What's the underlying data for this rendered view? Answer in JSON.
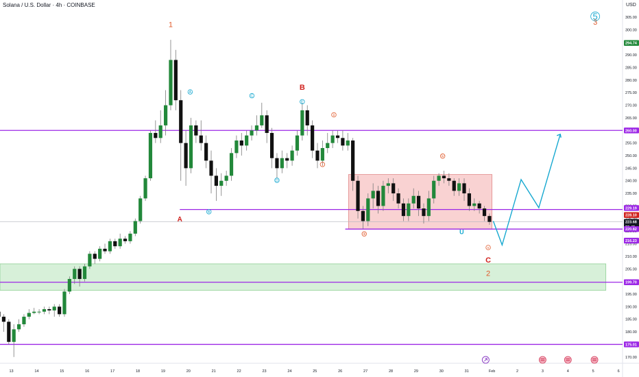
{
  "header": {
    "symbol": "Solana / U.S. Dollar",
    "interval": "4h",
    "exchange": "COINBASE",
    "currency": "USD"
  },
  "colors": {
    "up": "#22883a",
    "down": "#111111",
    "level": "#9c27e6",
    "red": "#d0211d",
    "cyan": "#16a8d0",
    "orange": "#e05a2b",
    "range_fill": "#f5b7b7",
    "support_fill": "#bfe6c2"
  },
  "chart_data": {
    "type": "candlestick",
    "x_ticks": [
      "13",
      "14",
      "15",
      "16",
      "17",
      "18",
      "19",
      "20",
      "21",
      "22",
      "23",
      "24",
      "25",
      "26",
      "27",
      "28",
      "29",
      "30",
      "31",
      "Feb",
      "2",
      "3",
      "4",
      "5",
      "6"
    ],
    "y_ticks": [
      170,
      175,
      180,
      185,
      190,
      195,
      200,
      205,
      210,
      215,
      220,
      225,
      230,
      235,
      240,
      245,
      250,
      255,
      260,
      265,
      270,
      275,
      280,
      285,
      290,
      295,
      300,
      305
    ],
    "ylim": [
      167.5,
      308
    ],
    "price_tags": [
      {
        "label": "294.74",
        "value": 294.74,
        "color": "#22883a"
      },
      {
        "label": "260.00",
        "value": 260.0,
        "color": "#9c27e6"
      },
      {
        "label": "229.19",
        "value": 229.19,
        "color": "#9c27e6"
      },
      {
        "label": "228.10",
        "value": 226.4,
        "color": "#d0211d"
      },
      {
        "label": "223.68",
        "value": 223.68,
        "color": "#131722"
      },
      {
        "label": "30:49",
        "value": 221.7,
        "color": "#131722"
      },
      {
        "label": "220.82",
        "value": 220.82,
        "color": "#9c27e6"
      },
      {
        "label": "216.23",
        "value": 216.23,
        "color": "#9c27e6"
      },
      {
        "label": "199.70",
        "value": 199.7,
        "color": "#9c27e6"
      },
      {
        "label": "175.01",
        "value": 175.01,
        "color": "#9c27e6"
      }
    ],
    "levels": [
      {
        "value": 260.0,
        "from": 12.5,
        "to": 25.4
      },
      {
        "value": 228.6,
        "from": 19.66,
        "to": 25.4
      },
      {
        "value": 220.82,
        "from": 26.2,
        "to": 25.4
      },
      {
        "value": 199.7,
        "from": 12.5,
        "to": 25.4
      },
      {
        "value": 175.01,
        "from": 12.5,
        "to": 25.4
      }
    ],
    "zones": [
      {
        "name": "range",
        "x1": 26.33,
        "x2": 32.0,
        "y1": 220.8,
        "y2": 242.5
      },
      {
        "name": "support",
        "x1": 12.5,
        "x2": 36.5,
        "y1": 196.5,
        "y2": 207.0
      }
    ],
    "candles": [
      [
        12.5,
        188,
        186,
        189.5,
        185
      ],
      [
        12.7,
        186,
        184,
        187,
        180
      ],
      [
        12.9,
        184,
        176,
        185,
        175
      ],
      [
        13.1,
        176,
        181,
        183,
        170
      ],
      [
        13.3,
        181,
        183,
        185,
        180
      ],
      [
        13.5,
        183,
        186,
        187,
        182
      ],
      [
        13.7,
        186,
        187.5,
        189,
        185
      ],
      [
        13.9,
        187.5,
        188,
        189.5,
        187
      ],
      [
        14.1,
        188,
        188,
        189,
        187
      ],
      [
        14.3,
        188,
        189,
        190,
        187
      ],
      [
        14.5,
        189,
        188.5,
        190,
        187
      ],
      [
        14.7,
        188.5,
        190,
        191,
        186
      ],
      [
        14.9,
        190,
        187,
        191,
        186
      ],
      [
        15.1,
        187,
        196,
        197,
        186
      ],
      [
        15.3,
        196,
        201,
        202,
        195
      ],
      [
        15.5,
        201,
        205,
        206,
        199
      ],
      [
        15.7,
        205,
        201,
        206,
        198
      ],
      [
        15.9,
        201,
        206,
        207,
        200
      ],
      [
        16.1,
        206,
        211,
        212,
        205
      ],
      [
        16.3,
        211,
        209,
        212,
        207
      ],
      [
        16.5,
        209,
        213,
        214,
        208
      ],
      [
        16.7,
        213,
        212,
        215,
        211
      ],
      [
        16.9,
        212,
        216,
        217,
        211
      ],
      [
        17.1,
        216,
        214,
        217,
        213
      ],
      [
        17.3,
        214,
        217,
        219,
        213
      ],
      [
        17.5,
        217,
        216,
        218,
        215
      ],
      [
        17.7,
        216,
        219,
        220,
        215
      ],
      [
        17.9,
        219,
        224,
        225,
        218
      ],
      [
        18.1,
        224,
        233,
        234,
        223
      ],
      [
        18.3,
        233,
        241,
        242,
        232
      ],
      [
        18.5,
        241,
        259,
        260,
        240
      ],
      [
        18.7,
        259,
        257,
        264,
        255
      ],
      [
        18.9,
        257,
        262,
        268,
        255
      ],
      [
        19.1,
        262,
        270,
        276,
        258
      ],
      [
        19.3,
        270,
        288,
        296,
        268
      ],
      [
        19.5,
        288,
        272,
        292,
        268
      ],
      [
        19.7,
        272,
        255,
        276,
        240
      ],
      [
        19.9,
        255,
        245,
        260,
        238
      ],
      [
        20.1,
        245,
        262,
        265,
        243
      ],
      [
        20.3,
        262,
        258,
        264,
        255
      ],
      [
        20.5,
        258,
        255,
        264,
        252
      ],
      [
        20.7,
        255,
        248,
        258,
        245
      ],
      [
        20.9,
        248,
        242,
        252,
        235
      ],
      [
        21.1,
        242,
        238,
        245,
        232
      ],
      [
        21.3,
        238,
        240,
        243,
        234
      ],
      [
        21.5,
        240,
        242,
        244,
        238
      ],
      [
        21.7,
        242,
        251,
        253,
        240
      ],
      [
        21.9,
        251,
        256,
        258,
        249
      ],
      [
        22.1,
        256,
        254,
        259,
        250
      ],
      [
        22.3,
        254,
        258,
        260,
        252
      ],
      [
        22.5,
        258,
        260,
        262,
        256
      ],
      [
        22.7,
        260,
        262,
        266,
        258
      ],
      [
        22.9,
        262,
        266,
        271,
        261
      ],
      [
        23.1,
        266,
        259,
        268,
        255
      ],
      [
        23.3,
        259,
        249,
        261,
        245
      ],
      [
        23.5,
        249,
        245,
        251,
        241
      ],
      [
        23.7,
        245,
        249,
        252,
        243
      ],
      [
        23.9,
        249,
        248,
        251,
        245
      ],
      [
        24.1,
        248,
        252,
        254,
        246
      ],
      [
        24.3,
        252,
        258,
        260,
        250
      ],
      [
        24.5,
        258,
        268,
        271,
        256
      ],
      [
        24.7,
        268,
        262,
        270,
        258
      ],
      [
        24.9,
        262,
        252,
        264,
        249
      ],
      [
        25.1,
        252,
        248,
        255,
        245
      ],
      [
        25.3,
        248,
        253,
        256,
        246
      ],
      [
        25.5,
        253,
        255,
        259,
        251
      ],
      [
        25.7,
        255,
        258,
        260,
        253
      ],
      [
        25.9,
        258,
        257,
        260,
        255
      ],
      [
        26.1,
        257,
        254,
        260,
        252
      ],
      [
        26.3,
        254,
        256,
        259,
        252
      ],
      [
        26.5,
        256,
        240,
        257,
        236
      ],
      [
        26.7,
        240,
        228,
        242,
        225
      ],
      [
        26.9,
        228,
        224,
        230,
        221
      ],
      [
        27.1,
        224,
        233,
        235,
        222
      ],
      [
        27.3,
        233,
        236,
        239,
        229
      ],
      [
        27.5,
        236,
        230,
        238,
        227
      ],
      [
        27.7,
        230,
        238,
        240,
        228
      ],
      [
        27.9,
        238,
        239,
        241,
        235
      ],
      [
        28.1,
        239,
        235,
        241,
        232
      ],
      [
        28.3,
        235,
        231,
        237,
        229
      ],
      [
        28.5,
        231,
        226,
        233,
        224
      ],
      [
        28.7,
        226,
        231,
        233,
        224
      ],
      [
        28.9,
        231,
        234,
        237,
        229
      ],
      [
        29.1,
        234,
        229,
        236,
        226
      ],
      [
        29.3,
        229,
        226,
        231,
        223
      ],
      [
        29.5,
        226,
        233,
        236,
        224
      ],
      [
        29.7,
        233,
        240,
        242,
        231
      ],
      [
        29.9,
        240,
        242,
        243,
        238
      ],
      [
        30.1,
        242,
        241,
        244,
        239
      ],
      [
        30.3,
        241,
        240,
        243,
        238
      ],
      [
        30.5,
        240,
        236,
        241,
        234
      ],
      [
        30.7,
        236,
        239,
        241,
        234
      ],
      [
        30.9,
        239,
        235,
        241,
        232
      ],
      [
        31.1,
        235,
        230,
        237,
        228
      ],
      [
        31.3,
        230,
        231,
        233,
        228
      ],
      [
        31.5,
        231,
        229,
        232,
        227
      ],
      [
        31.7,
        229,
        226,
        230,
        224
      ],
      [
        31.9,
        226,
        223.68,
        227,
        222.5
      ]
    ],
    "forecast": {
      "points": [
        [
          32.05,
          224
        ],
        [
          32.4,
          214.5
        ],
        [
          33.15,
          240.5
        ],
        [
          33.85,
          229.3
        ],
        [
          34.7,
          258.5
        ]
      ],
      "color": "#16a8d0"
    },
    "wave_labels": [
      {
        "text": "1",
        "x": 19.3,
        "y": 301,
        "color": "#e05a2b",
        "size": 11
      },
      {
        "text": "A",
        "x": 19.66,
        "y": 223.8,
        "color": "#d0211d",
        "size": 10,
        "bold": true
      },
      {
        "text": "B",
        "x": 24.5,
        "y": 276.2,
        "color": "#d0211d",
        "size": 11,
        "bold": true
      },
      {
        "text": "C",
        "x": 31.85,
        "y": 207.5,
        "color": "#d0211d",
        "size": 11,
        "bold": true
      },
      {
        "text": "2",
        "x": 31.85,
        "y": 202.2,
        "color": "#e05a2b",
        "size": 11
      },
      {
        "text": "3",
        "x": 36.08,
        "y": 302,
        "color": "#e05a2b",
        "size": 11
      },
      {
        "text": "U",
        "x": 30.8,
        "y": 218.8,
        "color": "#16a8d0",
        "size": 9,
        "bold": true
      }
    ],
    "circle_labels": [
      {
        "text": "A",
        "x": 20.07,
        "y": 275.3,
        "color": "#16a8d0",
        "r": 3.3
      },
      {
        "text": "B",
        "x": 20.81,
        "y": 227.7,
        "color": "#16a8d0",
        "r": 3.3
      },
      {
        "text": "C",
        "x": 22.51,
        "y": 273.8,
        "color": "#16a8d0",
        "r": 3.3
      },
      {
        "text": "D",
        "x": 23.5,
        "y": 240.2,
        "color": "#16a8d0",
        "r": 3.3
      },
      {
        "text": "E",
        "x": 24.5,
        "y": 271.4,
        "color": "#16a8d0",
        "r": 3.3
      },
      {
        "text": "i",
        "x": 25.3,
        "y": 246.5,
        "color": "#e05a2b",
        "r": 3.3
      },
      {
        "text": "ii",
        "x": 25.75,
        "y": 266.2,
        "color": "#e05a2b",
        "r": 3.3
      },
      {
        "text": "iii",
        "x": 26.95,
        "y": 218.9,
        "color": "#e05a2b",
        "r": 3.3
      },
      {
        "text": "iv",
        "x": 30.05,
        "y": 249.8,
        "color": "#e05a2b",
        "r": 3.3
      },
      {
        "text": "v",
        "x": 31.85,
        "y": 213.5,
        "color": "#e05a2b",
        "r": 3.3
      },
      {
        "text": "5",
        "x": 36.08,
        "y": 305.3,
        "color": "#16a8d0",
        "r": 6.5
      }
    ],
    "events": [
      {
        "kind": "spark",
        "x": 31.75
      },
      {
        "kind": "flag",
        "x": 34.0
      },
      {
        "kind": "flag",
        "x": 35.0
      },
      {
        "kind": "flag",
        "x": 36.05
      }
    ]
  }
}
